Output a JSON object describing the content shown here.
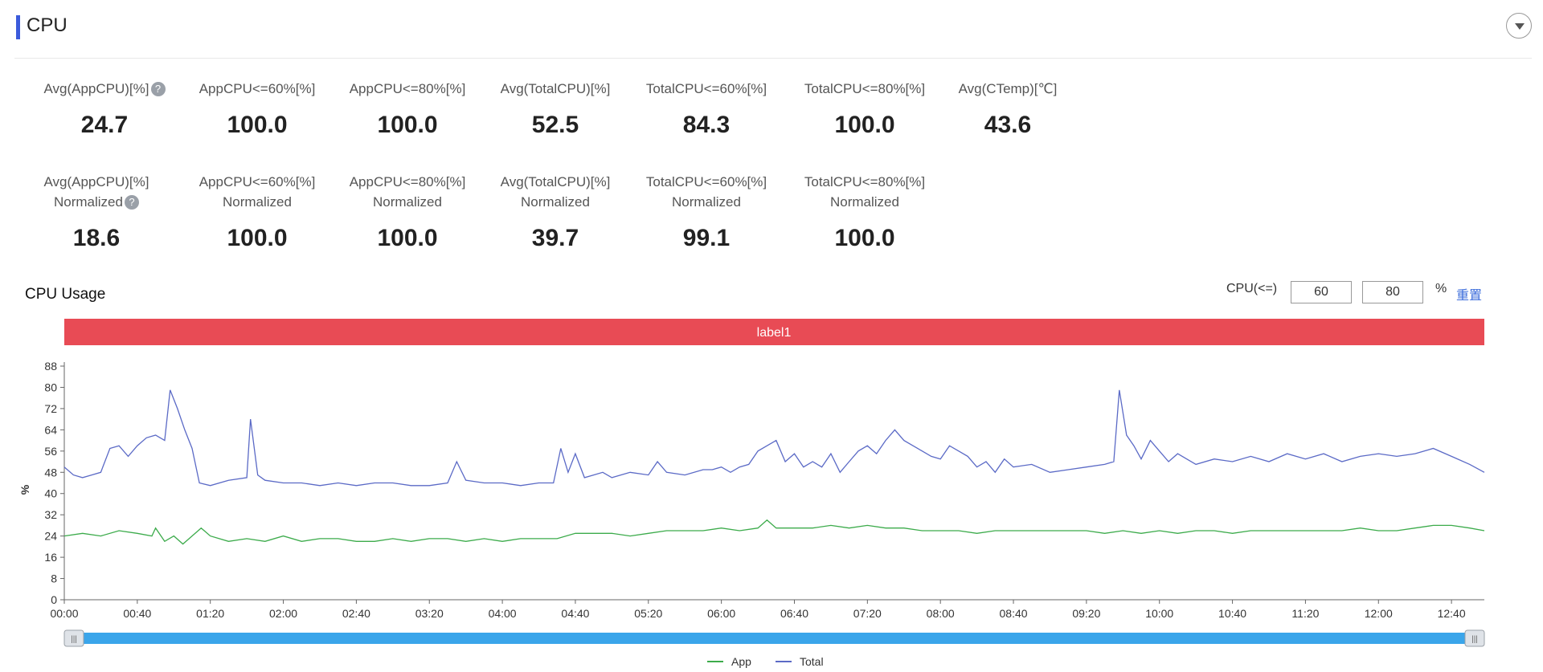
{
  "section": {
    "title": "CPU"
  },
  "metrics_row1": [
    {
      "label": "Avg(AppCPU)[%]",
      "help": true,
      "value": "24.7"
    },
    {
      "label": "AppCPU<=60%[%]",
      "value": "100.0"
    },
    {
      "label": "AppCPU<=80%[%]",
      "value": "100.0"
    },
    {
      "label": "Avg(TotalCPU)[%]",
      "value": "52.5"
    },
    {
      "label": "TotalCPU<=60%[%]",
      "value": "84.3"
    },
    {
      "label": "TotalCPU<=80%[%]",
      "value": "100.0"
    },
    {
      "label": "Avg(CTemp)[℃]",
      "value": "43.6"
    }
  ],
  "metrics_row2": [
    {
      "label": "Avg(AppCPU)[%]",
      "label2": "Normalized",
      "help": true,
      "value": "18.6"
    },
    {
      "label": "AppCPU<=60%[%]",
      "label2": "Normalized",
      "value": "100.0"
    },
    {
      "label": "AppCPU<=80%[%]",
      "label2": "Normalized",
      "value": "100.0"
    },
    {
      "label": "Avg(TotalCPU)[%]",
      "label2": "Normalized",
      "value": "39.7"
    },
    {
      "label": "TotalCPU<=60%[%]",
      "label2": "Normalized",
      "value": "99.1"
    },
    {
      "label": "TotalCPU<=80%[%]",
      "label2": "Normalized",
      "value": "100.0"
    }
  ],
  "help_glyph": "?",
  "chart_header": {
    "title": "CPU Usage",
    "threshold_label": "CPU(<=)",
    "threshold1": "60",
    "threshold2": "80",
    "unit": "%",
    "reset": "重置"
  },
  "chart_data": {
    "type": "line",
    "band_label": "label1",
    "band_color": "#e84b55",
    "ylabel": "%",
    "ylim": [
      0,
      88
    ],
    "yticks": [
      0,
      8,
      16,
      24,
      32,
      40,
      48,
      56,
      64,
      72,
      80,
      88
    ],
    "xlim_minutes": [
      0,
      778
    ],
    "xticks": [
      "00:00",
      "00:40",
      "01:20",
      "02:00",
      "02:40",
      "03:20",
      "04:00",
      "04:40",
      "05:20",
      "06:00",
      "06:40",
      "07:20",
      "08:00",
      "08:40",
      "09:20",
      "10:00",
      "10:40",
      "11:20",
      "12:00",
      "12:40"
    ],
    "legend_position": "bottom",
    "series": [
      {
        "name": "App",
        "color": "#3cab4b",
        "points": [
          [
            0,
            24
          ],
          [
            10,
            25
          ],
          [
            20,
            24
          ],
          [
            30,
            26
          ],
          [
            40,
            25
          ],
          [
            48,
            24
          ],
          [
            50,
            27
          ],
          [
            55,
            22
          ],
          [
            60,
            24
          ],
          [
            65,
            21
          ],
          [
            70,
            24
          ],
          [
            75,
            27
          ],
          [
            80,
            24
          ],
          [
            90,
            22
          ],
          [
            100,
            23
          ],
          [
            110,
            22
          ],
          [
            120,
            24
          ],
          [
            130,
            22
          ],
          [
            140,
            23
          ],
          [
            150,
            23
          ],
          [
            160,
            22
          ],
          [
            170,
            22
          ],
          [
            180,
            23
          ],
          [
            190,
            22
          ],
          [
            200,
            23
          ],
          [
            210,
            23
          ],
          [
            220,
            22
          ],
          [
            230,
            23
          ],
          [
            240,
            22
          ],
          [
            250,
            23
          ],
          [
            260,
            23
          ],
          [
            270,
            23
          ],
          [
            280,
            25
          ],
          [
            290,
            25
          ],
          [
            300,
            25
          ],
          [
            310,
            24
          ],
          [
            320,
            25
          ],
          [
            330,
            26
          ],
          [
            340,
            26
          ],
          [
            350,
            26
          ],
          [
            360,
            27
          ],
          [
            370,
            26
          ],
          [
            380,
            27
          ],
          [
            385,
            30
          ],
          [
            390,
            27
          ],
          [
            400,
            27
          ],
          [
            410,
            27
          ],
          [
            420,
            28
          ],
          [
            430,
            27
          ],
          [
            440,
            28
          ],
          [
            450,
            27
          ],
          [
            460,
            27
          ],
          [
            470,
            26
          ],
          [
            480,
            26
          ],
          [
            490,
            26
          ],
          [
            500,
            25
          ],
          [
            510,
            26
          ],
          [
            520,
            26
          ],
          [
            530,
            26
          ],
          [
            540,
            26
          ],
          [
            550,
            26
          ],
          [
            560,
            26
          ],
          [
            570,
            25
          ],
          [
            580,
            26
          ],
          [
            590,
            25
          ],
          [
            600,
            26
          ],
          [
            610,
            25
          ],
          [
            620,
            26
          ],
          [
            630,
            26
          ],
          [
            640,
            25
          ],
          [
            650,
            26
          ],
          [
            660,
            26
          ],
          [
            670,
            26
          ],
          [
            680,
            26
          ],
          [
            690,
            26
          ],
          [
            700,
            26
          ],
          [
            710,
            27
          ],
          [
            720,
            26
          ],
          [
            730,
            26
          ],
          [
            740,
            27
          ],
          [
            750,
            28
          ],
          [
            760,
            28
          ],
          [
            770,
            27
          ],
          [
            778,
            26
          ]
        ]
      },
      {
        "name": "Total",
        "color": "#5b6ac6",
        "points": [
          [
            0,
            50
          ],
          [
            5,
            47
          ],
          [
            10,
            46
          ],
          [
            15,
            47
          ],
          [
            20,
            48
          ],
          [
            25,
            57
          ],
          [
            30,
            58
          ],
          [
            35,
            54
          ],
          [
            40,
            58
          ],
          [
            45,
            61
          ],
          [
            50,
            62
          ],
          [
            55,
            60
          ],
          [
            58,
            79
          ],
          [
            62,
            72
          ],
          [
            66,
            64
          ],
          [
            70,
            57
          ],
          [
            74,
            44
          ],
          [
            80,
            43
          ],
          [
            90,
            45
          ],
          [
            100,
            46
          ],
          [
            102,
            68
          ],
          [
            106,
            47
          ],
          [
            110,
            45
          ],
          [
            120,
            44
          ],
          [
            130,
            44
          ],
          [
            140,
            43
          ],
          [
            150,
            44
          ],
          [
            160,
            43
          ],
          [
            170,
            44
          ],
          [
            180,
            44
          ],
          [
            190,
            43
          ],
          [
            200,
            43
          ],
          [
            210,
            44
          ],
          [
            215,
            52
          ],
          [
            220,
            45
          ],
          [
            230,
            44
          ],
          [
            240,
            44
          ],
          [
            250,
            43
          ],
          [
            260,
            44
          ],
          [
            268,
            44
          ],
          [
            272,
            57
          ],
          [
            276,
            48
          ],
          [
            280,
            55
          ],
          [
            285,
            46
          ],
          [
            290,
            47
          ],
          [
            295,
            48
          ],
          [
            300,
            46
          ],
          [
            310,
            48
          ],
          [
            320,
            47
          ],
          [
            325,
            52
          ],
          [
            330,
            48
          ],
          [
            340,
            47
          ],
          [
            350,
            49
          ],
          [
            355,
            49
          ],
          [
            360,
            50
          ],
          [
            365,
            48
          ],
          [
            370,
            50
          ],
          [
            375,
            51
          ],
          [
            380,
            56
          ],
          [
            385,
            58
          ],
          [
            390,
            60
          ],
          [
            395,
            52
          ],
          [
            400,
            55
          ],
          [
            405,
            50
          ],
          [
            410,
            52
          ],
          [
            415,
            50
          ],
          [
            420,
            55
          ],
          [
            425,
            48
          ],
          [
            430,
            52
          ],
          [
            435,
            56
          ],
          [
            440,
            58
          ],
          [
            445,
            55
          ],
          [
            450,
            60
          ],
          [
            455,
            64
          ],
          [
            460,
            60
          ],
          [
            465,
            58
          ],
          [
            470,
            56
          ],
          [
            475,
            54
          ],
          [
            480,
            53
          ],
          [
            485,
            58
          ],
          [
            490,
            56
          ],
          [
            495,
            54
          ],
          [
            500,
            50
          ],
          [
            505,
            52
          ],
          [
            510,
            48
          ],
          [
            515,
            53
          ],
          [
            520,
            50
          ],
          [
            530,
            51
          ],
          [
            540,
            48
          ],
          [
            550,
            49
          ],
          [
            560,
            50
          ],
          [
            570,
            51
          ],
          [
            575,
            52
          ],
          [
            578,
            79
          ],
          [
            582,
            62
          ],
          [
            586,
            58
          ],
          [
            590,
            53
          ],
          [
            595,
            60
          ],
          [
            600,
            56
          ],
          [
            605,
            52
          ],
          [
            610,
            55
          ],
          [
            620,
            51
          ],
          [
            630,
            53
          ],
          [
            640,
            52
          ],
          [
            650,
            54
          ],
          [
            660,
            52
          ],
          [
            670,
            55
          ],
          [
            680,
            53
          ],
          [
            690,
            55
          ],
          [
            700,
            52
          ],
          [
            710,
            54
          ],
          [
            720,
            55
          ],
          [
            730,
            54
          ],
          [
            740,
            55
          ],
          [
            750,
            57
          ],
          [
            760,
            54
          ],
          [
            770,
            51
          ],
          [
            778,
            48
          ]
        ]
      }
    ]
  }
}
